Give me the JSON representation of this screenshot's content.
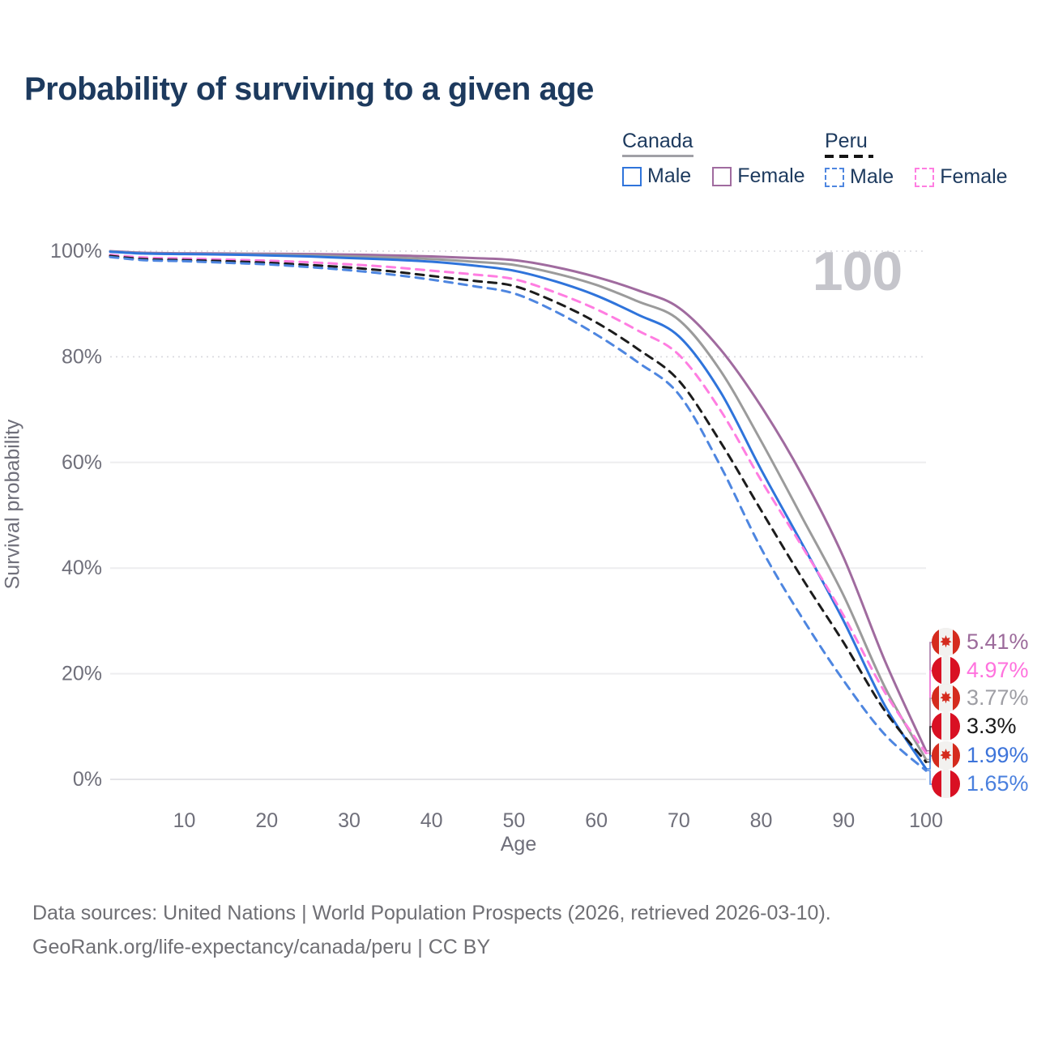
{
  "title": "Probability of surviving to a given age",
  "watermark": "100",
  "legend": {
    "groups": [
      {
        "label": "Canada",
        "line_style": "solid",
        "items": [
          {
            "label": "Male",
            "color": "#2f74db",
            "dashed": false
          },
          {
            "label": "Female",
            "color": "#a06b9f",
            "dashed": false
          }
        ]
      },
      {
        "label": "Peru",
        "line_style": "dashed",
        "items": [
          {
            "label": "Male",
            "color": "#4e86e0",
            "dashed": true
          },
          {
            "label": "Female",
            "color": "#ff7de1",
            "dashed": true
          }
        ]
      }
    ]
  },
  "chart_data": {
    "type": "line",
    "title": "Probability of surviving to a given age",
    "xlabel": "Age",
    "ylabel": "Survival probability",
    "xlim": [
      1,
      100
    ],
    "ylim": [
      0,
      100
    ],
    "grid": true,
    "x_ticks": [
      10,
      20,
      30,
      40,
      50,
      60,
      70,
      80,
      90,
      100
    ],
    "y_ticks": [
      {
        "value": 0,
        "label": "0%"
      },
      {
        "value": 20,
        "label": "20%"
      },
      {
        "value": 40,
        "label": "40%"
      },
      {
        "value": 60,
        "label": "60%"
      },
      {
        "value": 80,
        "label": "80%"
      },
      {
        "value": 100,
        "label": "100%"
      }
    ],
    "x": [
      1,
      5,
      10,
      15,
      20,
      25,
      30,
      35,
      40,
      45,
      50,
      55,
      60,
      65,
      70,
      75,
      80,
      85,
      90,
      95,
      100
    ],
    "series": [
      {
        "name": "Canada Female",
        "country": "canada",
        "sex": "female",
        "color": "#a06b9f",
        "label_color": "#9c6b9b",
        "dashed": false,
        "end_label": "5.41%",
        "values": [
          100,
          99.7,
          99.6,
          99.55,
          99.5,
          99.45,
          99.35,
          99.2,
          99.0,
          98.7,
          98.3,
          97.0,
          95.1,
          92.6,
          89.3,
          81.5,
          70.6,
          57.5,
          42.0,
          22.5,
          5.41
        ]
      },
      {
        "name": "Peru Female",
        "country": "peru",
        "sex": "female",
        "color": "#ff7de1",
        "label_color": "#ff72de",
        "dashed": true,
        "end_label": "4.97%",
        "values": [
          99.3,
          98.8,
          98.6,
          98.4,
          98.2,
          97.9,
          97.5,
          97.0,
          96.3,
          95.6,
          94.7,
          92.2,
          89.0,
          85.0,
          80.4,
          70.0,
          56.6,
          44.0,
          31.0,
          16.5,
          4.97
        ]
      },
      {
        "name": "Canada (all)",
        "country": "canada",
        "sex": "all",
        "color": "#9b9b9b",
        "label_color": "#9e9ea4",
        "dashed": false,
        "end_label": "3.77%",
        "values": [
          99.95,
          99.6,
          99.5,
          99.45,
          99.35,
          99.2,
          99.0,
          98.8,
          98.5,
          98.0,
          97.4,
          95.8,
          93.6,
          90.5,
          87.0,
          77.5,
          64.0,
          49.5,
          34.8,
          17.5,
          3.77
        ]
      },
      {
        "name": "Peru (all)",
        "country": "peru",
        "sex": "all",
        "color": "#1c1c1c",
        "label_color": "#1a1a1a",
        "dashed": true,
        "end_label": "3.3%",
        "values": [
          99.1,
          98.5,
          98.3,
          98.1,
          97.8,
          97.4,
          96.9,
          96.2,
          95.3,
          94.4,
          93.4,
          90.4,
          86.5,
          81.5,
          75.5,
          64.0,
          50.9,
          38.0,
          25.9,
          13.0,
          3.3
        ]
      },
      {
        "name": "Canada Male",
        "country": "canada",
        "sex": "male",
        "color": "#2f74db",
        "label_color": "#3d74da",
        "dashed": false,
        "end_label": "1.99%",
        "values": [
          99.9,
          99.55,
          99.45,
          99.35,
          99.2,
          99.0,
          98.7,
          98.4,
          98.0,
          97.3,
          96.3,
          94.3,
          91.6,
          88.0,
          83.9,
          73.5,
          58.6,
          44.5,
          30.0,
          14.0,
          1.99
        ]
      },
      {
        "name": "Peru Male",
        "country": "peru",
        "sex": "male",
        "color": "#4e86e0",
        "label_color": "#4a80de",
        "dashed": true,
        "end_label": "1.65%",
        "values": [
          98.9,
          98.3,
          98.1,
          97.8,
          97.5,
          97.0,
          96.4,
          95.6,
          94.6,
          93.4,
          92.0,
          88.6,
          84.2,
          79.0,
          72.9,
          59.5,
          43.7,
          30.5,
          18.7,
          8.5,
          1.65
        ]
      }
    ]
  },
  "footer": {
    "line1": "Data sources: United Nations | World Population Prospects (2026, retrieved 2026-03-10).",
    "line2": "GeoRank.org/life-expectancy/canada/peru | CC BY"
  }
}
